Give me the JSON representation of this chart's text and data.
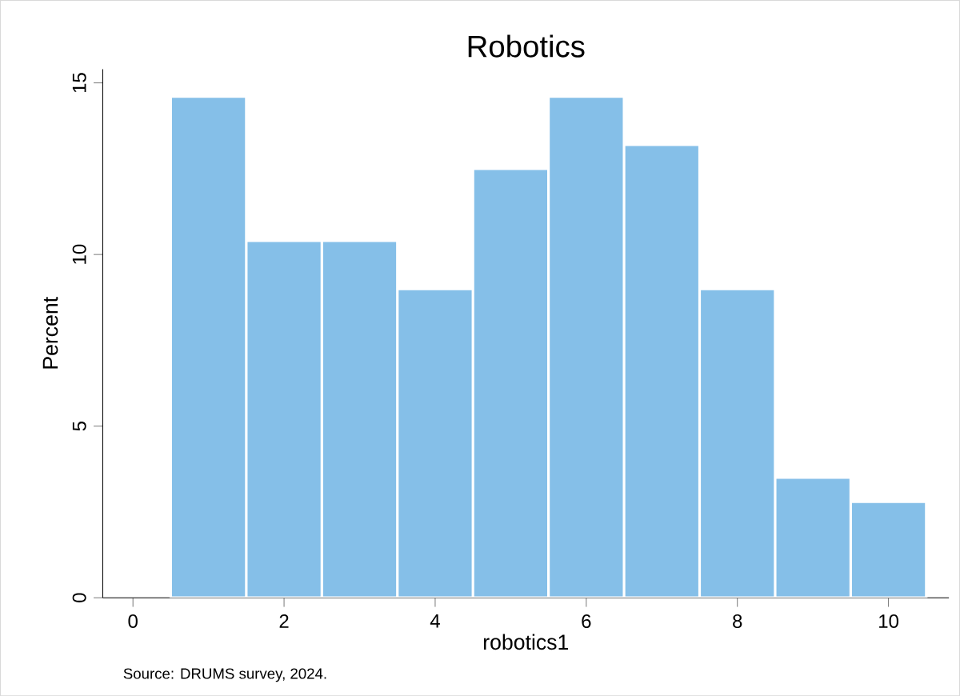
{
  "chart_data": {
    "type": "histogram",
    "title": "Robotics",
    "xlabel": "robotics1",
    "ylabel": "Percent",
    "bins": [
      0.5,
      1.5,
      2.5,
      3.5,
      4.5,
      5.5,
      6.5,
      7.5,
      8.5,
      9.5,
      10.5
    ],
    "values": [
      14.6,
      10.4,
      10.4,
      9.0,
      12.5,
      14.6,
      13.2,
      9.0,
      3.5,
      2.8
    ],
    "color": "#85bfe8",
    "xlim": [
      -0.4,
      10.8
    ],
    "ylim": [
      0,
      15.4
    ],
    "xticks": [
      0,
      2,
      4,
      6,
      8,
      10
    ],
    "yticks": [
      0,
      5,
      10,
      15
    ],
    "grid": false,
    "annotations": [
      "Source: DRUMS survey, 2024."
    ]
  }
}
